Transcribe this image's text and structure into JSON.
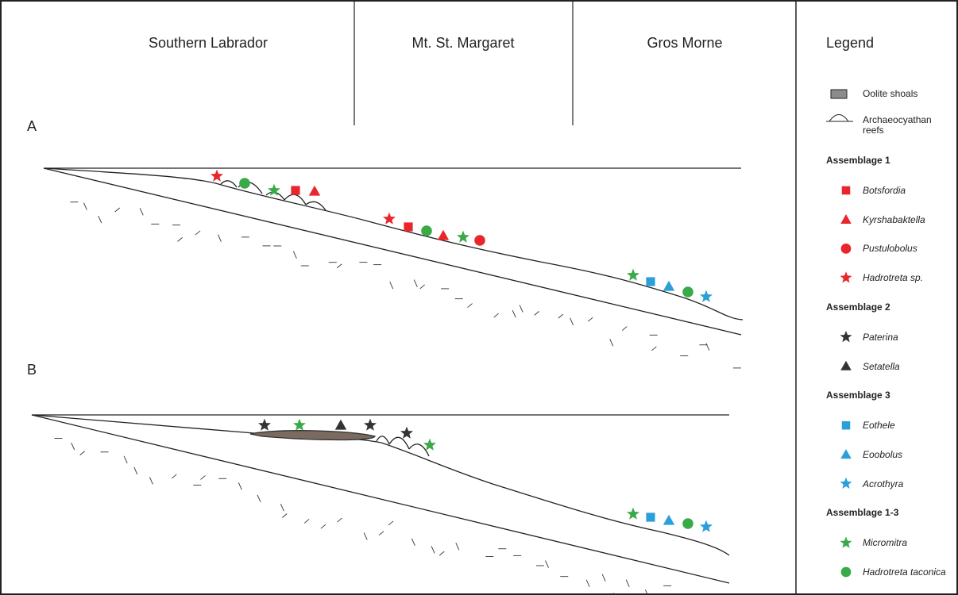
{
  "regions": [
    "Southern Labrador",
    "Mt. St. Margaret",
    "Gros Morne"
  ],
  "panels": [
    "A",
    "B"
  ],
  "legend": {
    "title": "Legend",
    "features": [
      {
        "label": "Oolite shoals"
      },
      {
        "label": "Archaeocyathan reefs"
      }
    ],
    "groups": [
      {
        "title": "Assemblage 1",
        "items": [
          {
            "label": "Botsfordia",
            "shape": "square",
            "color": "#e8262b"
          },
          {
            "label": "Kyrshabaktella",
            "shape": "triangle",
            "color": "#e8262b"
          },
          {
            "label": "Pustulobolus",
            "shape": "circle",
            "color": "#e8262b"
          },
          {
            "label": "Hadrotreta sp.",
            "shape": "star",
            "color": "#e8262b"
          }
        ]
      },
      {
        "title": "Assemblage 2",
        "items": [
          {
            "label": "Paterina",
            "shape": "star",
            "color": "#333333"
          },
          {
            "label": "Setatella",
            "shape": "triangle",
            "color": "#333333"
          }
        ]
      },
      {
        "title": "Assemblage 3",
        "items": [
          {
            "label": "Eothele",
            "shape": "square",
            "color": "#2a9fd8"
          },
          {
            "label": "Eoobolus",
            "shape": "triangle",
            "color": "#2a9fd8"
          },
          {
            "label": "Acrothyra",
            "shape": "star",
            "color": "#2a9fd8"
          }
        ]
      },
      {
        "title": "Assemblage 1-3",
        "items": [
          {
            "label": "Micromitra",
            "shape": "star",
            "color": "#3aaa49"
          },
          {
            "label": "Hadrotreta taconica",
            "shape": "circle",
            "color": "#3aaa49"
          }
        ]
      }
    ]
  }
}
